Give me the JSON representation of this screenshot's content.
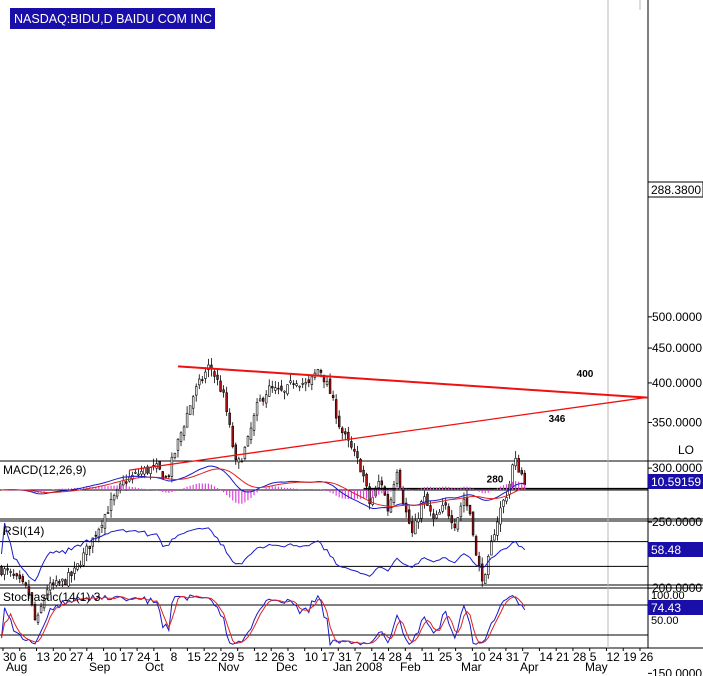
{
  "chart_data": {
    "type": "candlestick",
    "title": "NASDAQ:BIDU,D BAIDU COM INC",
    "price": {
      "y_ticks": [
        "150.0000",
        "200.0000",
        "250.0000",
        "300.0000",
        "350.0000",
        "400.0000",
        "450.0000",
        "500.0000"
      ],
      "last_price": "288.3800",
      "lo_label": "LO",
      "trendlines": [
        {
          "name": "upper-resistance",
          "label": "400",
          "color": "#ee1111",
          "from": [
            58,
            423
          ],
          "to": [
            173,
            391
          ]
        },
        {
          "name": "rising-support",
          "label": "346",
          "color": "#ee1111",
          "from": [
            42,
            298
          ],
          "to": [
            173,
            360
          ]
        },
        {
          "name": "horizontal-280",
          "label": "280",
          "color": "#000000",
          "from": [
            119,
            280
          ],
          "to": [
            173,
            280
          ]
        }
      ]
    },
    "macd": {
      "label": "MACD(12,26,9)",
      "value": "10.59159"
    },
    "rsi": {
      "label": "RSI(14)",
      "value": "58.48"
    },
    "stochastic": {
      "label": "Stochastic(14(1) 3",
      "value": "74.43",
      "ticks": [
        "100.00",
        "50.00"
      ]
    },
    "x_axis": {
      "day_labels": [
        "30",
        "6",
        "13",
        "20",
        "27",
        "4",
        "10",
        "17",
        "24",
        "1",
        "8",
        "15",
        "22",
        "29",
        "5",
        "12",
        "26",
        "3",
        "10",
        "17",
        "31",
        "7",
        "14",
        "28",
        "4",
        "11",
        "25",
        "3",
        "10",
        "24",
        "31",
        "7",
        "14",
        "21",
        "28",
        "5",
        "12",
        "19",
        "26"
      ],
      "month_labels": [
        "Aug",
        "Sep",
        "Oct",
        "Nov",
        "Dec",
        "Jan 2008",
        "Feb",
        "Mar",
        "Apr",
        "May"
      ]
    },
    "colors": {
      "up": "#118833",
      "down": "#aa1111",
      "macd": "#1a1acc",
      "signal": "#dd2222",
      "hist": "#dd44dd",
      "grid": "#b8b8b8"
    }
  }
}
